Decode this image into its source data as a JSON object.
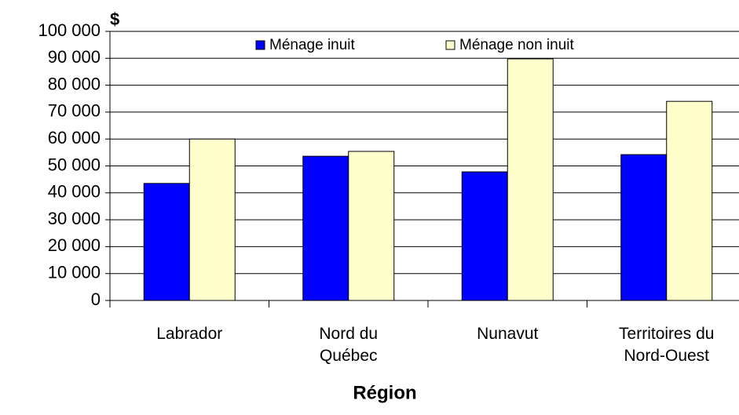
{
  "chart_data": {
    "type": "bar",
    "y_label": "$",
    "x_label": "Région",
    "categories": [
      "Labrador",
      "Nord du\nQuébec",
      "Nunavut",
      "Territoires du\nNord-Ouest"
    ],
    "series": [
      {
        "name": "Ménage inuit",
        "color": "#0000ff",
        "values": [
          43500,
          53600,
          47800,
          54200
        ]
      },
      {
        "name": "Ménage non inuit",
        "color": "#ffffcc",
        "values": [
          60000,
          55400,
          89800,
          74000
        ]
      }
    ],
    "ylim": [
      0,
      100000
    ],
    "yticks": [
      0,
      {
        "value": 10000,
        "label": "10 000"
      },
      {
        "value": 20000,
        "label": "20 000"
      },
      {
        "value": 30000,
        "label": "30 000"
      },
      {
        "value": 40000,
        "label": "40 000"
      },
      {
        "value": 50000,
        "label": "50 000"
      },
      {
        "value": 60000,
        "label": "60 000"
      },
      {
        "value": 70000,
        "label": "70 000"
      },
      {
        "value": 80000,
        "label": "80 000"
      },
      {
        "value": 90000,
        "label": "90 000"
      },
      {
        "value": 100000,
        "label": "100 000"
      }
    ],
    "grid": true,
    "legend": "top"
  }
}
